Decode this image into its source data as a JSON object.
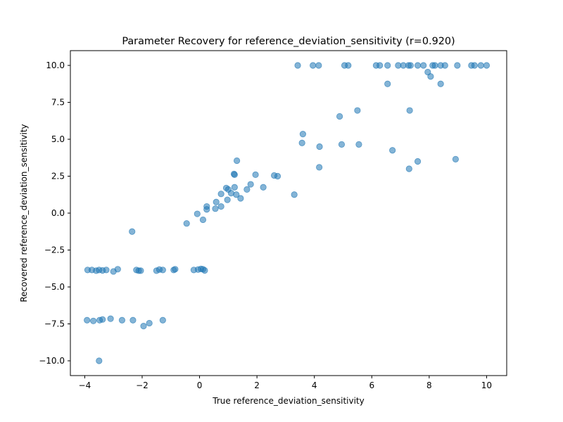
{
  "chart_data": {
    "type": "scatter",
    "title": "Parameter Recovery for reference_deviation_sensitivity (r=0.920)",
    "xlabel": "True reference_deviation_sensitivity",
    "ylabel": "Recovered reference_deviation_sensitivity",
    "xlim": [
      -4.5,
      10.7
    ],
    "ylim": [
      -11,
      11
    ],
    "xticks": [
      -4,
      -2,
      0,
      2,
      4,
      6,
      8,
      10
    ],
    "xtick_labels": [
      "−4",
      "−2",
      "0",
      "2",
      "4",
      "6",
      "8",
      "10"
    ],
    "yticks": [
      -10,
      -7.5,
      -5,
      -2.5,
      0,
      2.5,
      5,
      7.5,
      10
    ],
    "ytick_labels": [
      "−10.0",
      "−7.5",
      "−5.0",
      "−2.5",
      "0.0",
      "2.5",
      "5.0",
      "7.5",
      "10.0"
    ],
    "grid": false,
    "marker_color": "#1f77b4",
    "marker_alpha": 0.55,
    "series": [
      {
        "points": [
          [
            3.42,
            10.0
          ],
          [
            3.95,
            10.0
          ],
          [
            4.15,
            10.0
          ],
          [
            5.05,
            10.0
          ],
          [
            5.18,
            10.0
          ],
          [
            6.15,
            10.0
          ],
          [
            6.28,
            10.0
          ],
          [
            6.55,
            10.0
          ],
          [
            6.92,
            10.0
          ],
          [
            7.1,
            10.0
          ],
          [
            7.28,
            10.0
          ],
          [
            7.35,
            10.0
          ],
          [
            7.6,
            10.0
          ],
          [
            7.8,
            10.0
          ],
          [
            8.12,
            10.0
          ],
          [
            8.2,
            10.0
          ],
          [
            8.4,
            10.0
          ],
          [
            8.55,
            10.0
          ],
          [
            8.98,
            10.0
          ],
          [
            9.47,
            10.0
          ],
          [
            9.58,
            10.0
          ],
          [
            9.8,
            10.0
          ],
          [
            10.0,
            10.0
          ],
          [
            7.95,
            9.55
          ],
          [
            8.05,
            9.25
          ],
          [
            6.55,
            8.75
          ],
          [
            8.4,
            8.75
          ],
          [
            5.5,
            6.95
          ],
          [
            7.32,
            6.95
          ],
          [
            4.88,
            6.55
          ],
          [
            3.6,
            5.35
          ],
          [
            3.57,
            4.75
          ],
          [
            4.95,
            4.65
          ],
          [
            5.55,
            4.65
          ],
          [
            4.18,
            4.5
          ],
          [
            6.72,
            4.25
          ],
          [
            8.92,
            3.65
          ],
          [
            7.6,
            3.5
          ],
          [
            4.17,
            3.1
          ],
          [
            7.3,
            3.0
          ],
          [
            1.3,
            3.55
          ],
          [
            1.2,
            2.65
          ],
          [
            1.22,
            2.6
          ],
          [
            1.95,
            2.6
          ],
          [
            2.6,
            2.55
          ],
          [
            2.72,
            2.5
          ],
          [
            1.78,
            1.95
          ],
          [
            1.22,
            1.75
          ],
          [
            2.22,
            1.75
          ],
          [
            0.93,
            1.7
          ],
          [
            1.0,
            1.6
          ],
          [
            1.65,
            1.6
          ],
          [
            1.1,
            1.35
          ],
          [
            0.75,
            1.3
          ],
          [
            1.28,
            1.25
          ],
          [
            3.3,
            1.25
          ],
          [
            1.43,
            1.0
          ],
          [
            0.97,
            0.9
          ],
          [
            0.58,
            0.75
          ],
          [
            0.25,
            0.45
          ],
          [
            0.75,
            0.45
          ],
          [
            0.25,
            0.25
          ],
          [
            0.55,
            0.3
          ],
          [
            -0.08,
            -0.05
          ],
          [
            0.12,
            -0.45
          ],
          [
            -0.45,
            -0.7
          ],
          [
            -2.35,
            -1.25
          ],
          [
            -3.9,
            -3.85
          ],
          [
            -3.75,
            -3.85
          ],
          [
            -3.6,
            -3.9
          ],
          [
            -3.5,
            -3.85
          ],
          [
            -3.38,
            -3.88
          ],
          [
            -3.25,
            -3.85
          ],
          [
            -3.0,
            -3.95
          ],
          [
            -2.85,
            -3.8
          ],
          [
            -2.2,
            -3.85
          ],
          [
            -2.12,
            -3.9
          ],
          [
            -2.05,
            -3.9
          ],
          [
            -1.5,
            -3.9
          ],
          [
            -1.4,
            -3.82
          ],
          [
            -1.28,
            -3.85
          ],
          [
            -0.9,
            -3.85
          ],
          [
            -0.85,
            -3.8
          ],
          [
            -0.2,
            -3.85
          ],
          [
            -0.05,
            -3.82
          ],
          [
            0.05,
            -3.78
          ],
          [
            0.12,
            -3.8
          ],
          [
            0.18,
            -3.88
          ],
          [
            -3.92,
            -7.25
          ],
          [
            -3.7,
            -7.3
          ],
          [
            -3.48,
            -7.25
          ],
          [
            -3.38,
            -7.2
          ],
          [
            -3.1,
            -7.15
          ],
          [
            -2.7,
            -7.25
          ],
          [
            -2.32,
            -7.25
          ],
          [
            -1.95,
            -7.65
          ],
          [
            -1.75,
            -7.45
          ],
          [
            -1.28,
            -7.25
          ],
          [
            -3.5,
            -10.0
          ]
        ]
      }
    ]
  }
}
